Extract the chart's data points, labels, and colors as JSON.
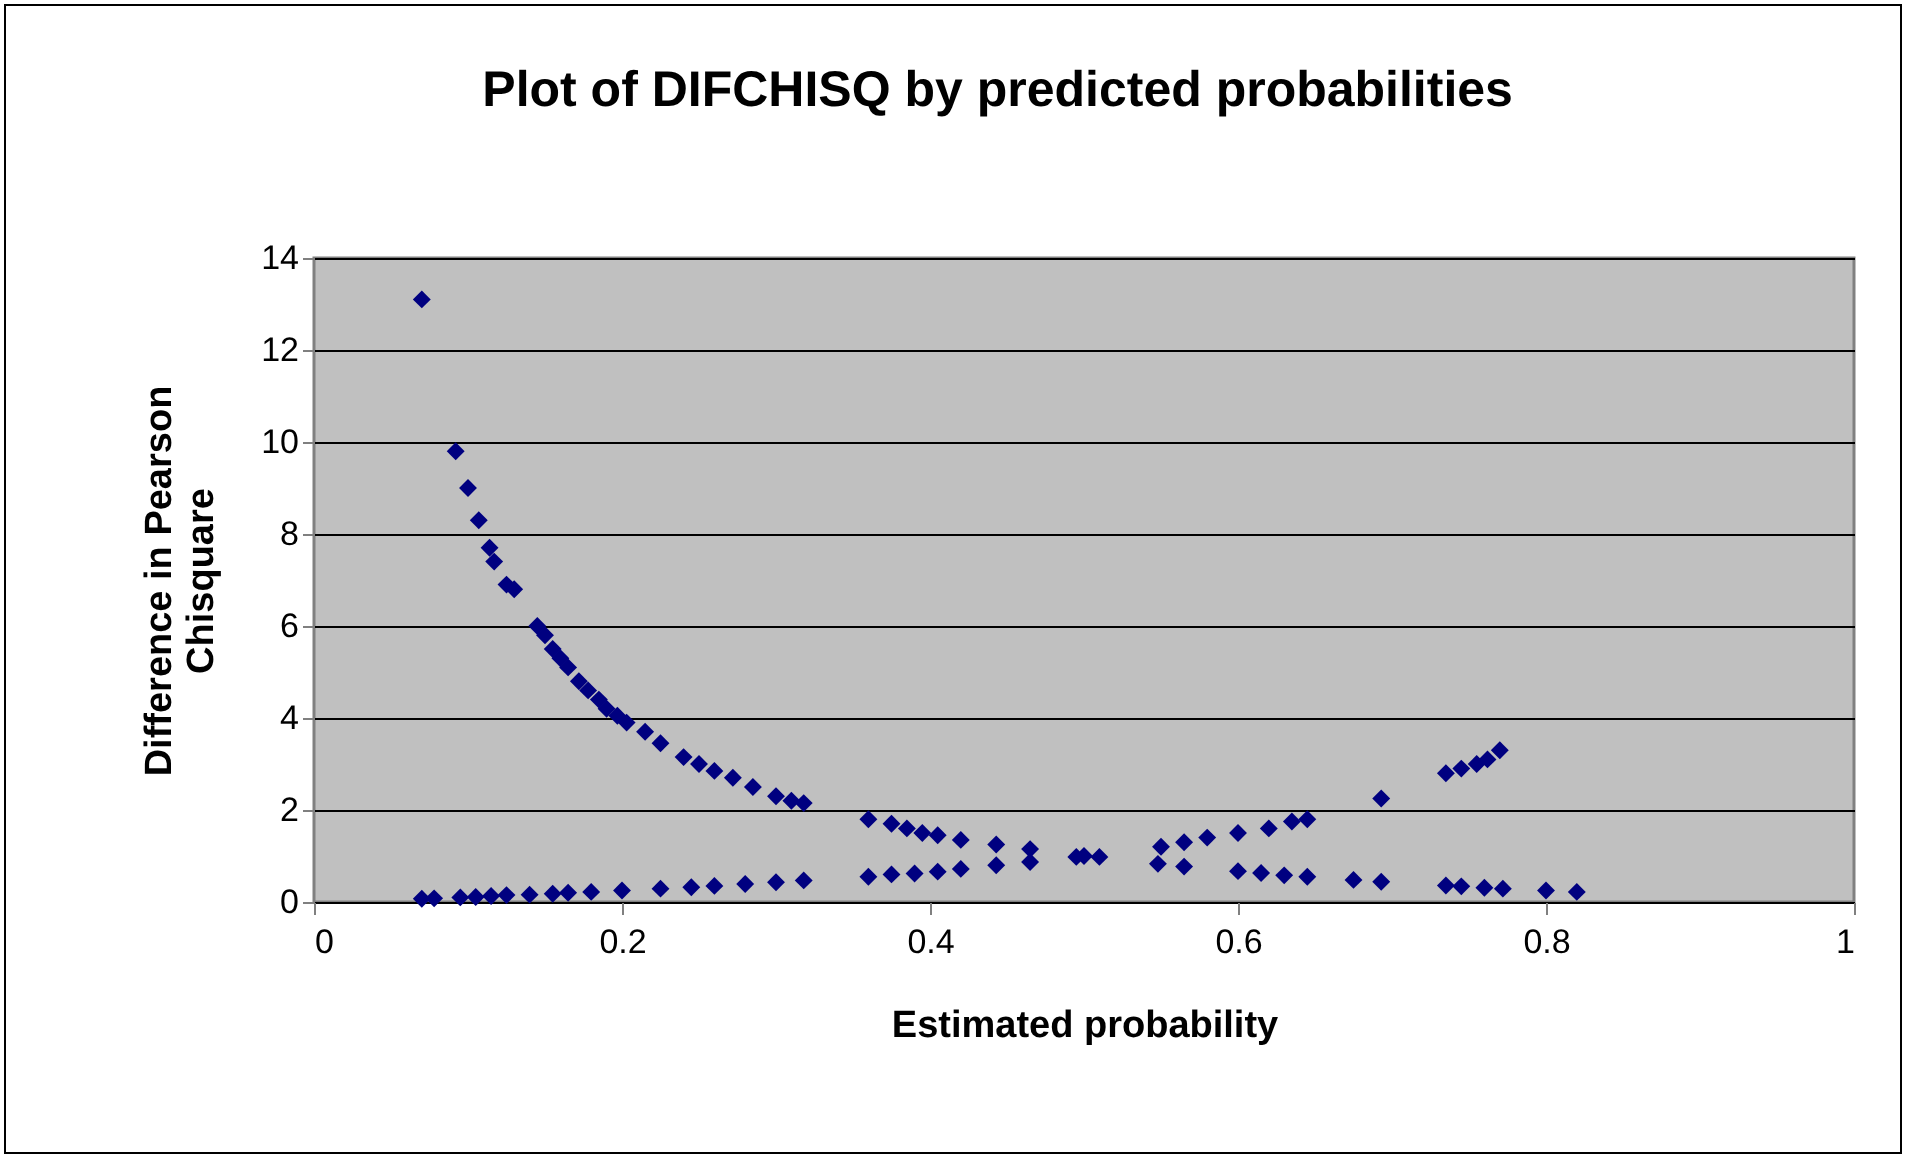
{
  "chart_data": {
    "type": "scatter",
    "title": "Plot of DIFCHISQ by predicted probabilities",
    "xlabel": "Estimated probability",
    "ylabel": "Difference in Pearson Chisquare",
    "xlim": [
      0,
      1
    ],
    "xticks": [
      0,
      0.2,
      0.4,
      0.6,
      0.8,
      1
    ],
    "ylim": [
      0,
      14
    ],
    "yticks": [
      0,
      2,
      4,
      6,
      8,
      10,
      12,
      14
    ],
    "grid": "y",
    "marker": "diamond",
    "series": [
      {
        "color": "#000080",
        "x": [
          0.07,
          0.092,
          0.1,
          0.107,
          0.114,
          0.117,
          0.125,
          0.13,
          0.145,
          0.15,
          0.155,
          0.16,
          0.165,
          0.172,
          0.178,
          0.185,
          0.19,
          0.197,
          0.203,
          0.215,
          0.225,
          0.24,
          0.25,
          0.26,
          0.272,
          0.285,
          0.3,
          0.31,
          0.318,
          0.07,
          0.078,
          0.095,
          0.105,
          0.115,
          0.125,
          0.14,
          0.155,
          0.165,
          0.18,
          0.2,
          0.225,
          0.245,
          0.26,
          0.28,
          0.3,
          0.318,
          0.36,
          0.375,
          0.385,
          0.395,
          0.405,
          0.42,
          0.443,
          0.465,
          0.5,
          0.51,
          0.55,
          0.565,
          0.58,
          0.6,
          0.62,
          0.635,
          0.645,
          0.36,
          0.375,
          0.39,
          0.405,
          0.42,
          0.443,
          0.465,
          0.495,
          0.548,
          0.565,
          0.6,
          0.615,
          0.63,
          0.645,
          0.675,
          0.693,
          0.735,
          0.745,
          0.76,
          0.772,
          0.8,
          0.82,
          0.693,
          0.735,
          0.745,
          0.755,
          0.762,
          0.77
        ],
        "values": [
          13.1,
          9.8,
          9.0,
          8.3,
          7.7,
          7.4,
          6.9,
          6.8,
          6.0,
          5.8,
          5.5,
          5.3,
          5.1,
          4.8,
          4.6,
          4.4,
          4.2,
          4.05,
          3.9,
          3.7,
          3.45,
          3.15,
          3.0,
          2.85,
          2.7,
          2.5,
          2.3,
          2.2,
          2.15,
          0.07,
          0.08,
          0.1,
          0.11,
          0.13,
          0.15,
          0.16,
          0.18,
          0.2,
          0.22,
          0.25,
          0.29,
          0.32,
          0.35,
          0.39,
          0.43,
          0.47,
          1.8,
          1.7,
          1.6,
          1.5,
          1.45,
          1.35,
          1.25,
          1.15,
          1.0,
          0.98,
          1.2,
          1.3,
          1.4,
          1.5,
          1.6,
          1.75,
          1.8,
          0.55,
          0.6,
          0.62,
          0.66,
          0.72,
          0.8,
          0.87,
          0.98,
          0.83,
          0.77,
          0.67,
          0.63,
          0.58,
          0.55,
          0.48,
          0.44,
          0.36,
          0.34,
          0.31,
          0.29,
          0.25,
          0.22,
          2.25,
          2.8,
          2.9,
          3.0,
          3.1,
          3.3
        ]
      }
    ]
  }
}
